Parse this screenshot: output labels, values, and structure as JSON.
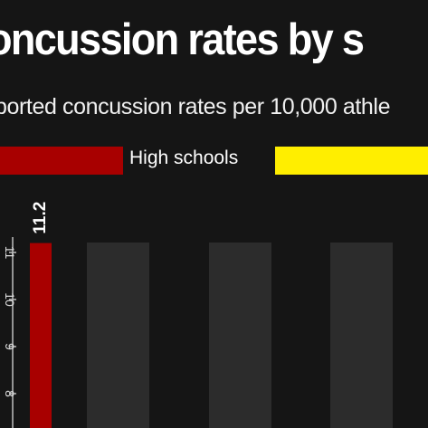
{
  "chart_data": {
    "type": "bar",
    "title": "oncussion rates by s",
    "subtitle": "ported concussion rates per 10,000 athle",
    "legend": [
      {
        "label": "High schools",
        "color": "#a80000"
      },
      {
        "label": "",
        "color": "#ffee00"
      }
    ],
    "yaxis": {
      "ticks": [
        "11",
        "10",
        "9",
        "8"
      ],
      "range": [
        7.5,
        11.2
      ]
    },
    "series": [
      {
        "name": "High schools",
        "values": [
          11.2
        ],
        "color": "#a80000",
        "labels": [
          "11.2"
        ]
      }
    ],
    "background_bars": 3,
    "background_bar_color": "#2c2c2c",
    "grid": false,
    "legend_position": "top"
  }
}
